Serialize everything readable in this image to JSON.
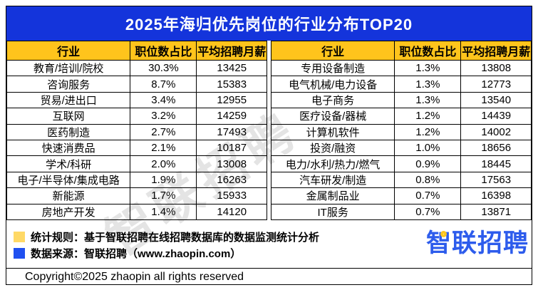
{
  "title": "2025年海归优先岗位的行业分布TOP20",
  "chart_data": {
    "type": "table",
    "title": "2025年海归优先岗位的行业分布TOP20",
    "columns": [
      "行业",
      "职位数占比",
      "平均招聘月薪"
    ],
    "left_rows": [
      [
        "教育/培训/院校",
        "30.3%",
        "13425"
      ],
      [
        "咨询服务",
        "8.7%",
        "15383"
      ],
      [
        "贸易/进出口",
        "3.4%",
        "12955"
      ],
      [
        "互联网",
        "3.2%",
        "14259"
      ],
      [
        "医药制造",
        "2.7%",
        "17493"
      ],
      [
        "快速消费品",
        "2.1%",
        "10187"
      ],
      [
        "学术/科研",
        "2.0%",
        "13008"
      ],
      [
        "电子/半导体/集成电路",
        "1.9%",
        "16263"
      ],
      [
        "新能源",
        "1.7%",
        "15933"
      ],
      [
        "房地产开发",
        "1.4%",
        "14120"
      ]
    ],
    "right_rows": [
      [
        "专用设备制造",
        "1.3%",
        "13808"
      ],
      [
        "电气机械/电力设备",
        "1.3%",
        "12773"
      ],
      [
        "电子商务",
        "1.3%",
        "13540"
      ],
      [
        "医疗设备/器械",
        "1.2%",
        "14439"
      ],
      [
        "计算机软件",
        "1.2%",
        "14002"
      ],
      [
        "投资/融资",
        "1.0%",
        "18656"
      ],
      [
        "电力/水利/热力/燃气",
        "0.9%",
        "18445"
      ],
      [
        "汽车研发/制造",
        "0.8%",
        "17563"
      ],
      [
        "金属制品业",
        "0.7%",
        "16398"
      ],
      [
        "IT服务",
        "0.7%",
        "13871"
      ]
    ]
  },
  "footer": {
    "note1": "统计规则：基于智联招聘在线招聘数据库的数据监测统计分析",
    "note2": "数据来源：智联招聘（www.zhaopin.com）",
    "copyright": "Copyright©2025 zhaopin all rights reserved"
  },
  "logo": {
    "text": "智联招聘"
  },
  "watermark": "智联招聘",
  "colors": {
    "title_bg": "#1434db",
    "header_bg": "#ffc41c",
    "note1_square": "#ffd966",
    "note2_square": "#2050f0",
    "logo_blue": "#2d5cec",
    "logo_yellow": "#ffc61e"
  }
}
